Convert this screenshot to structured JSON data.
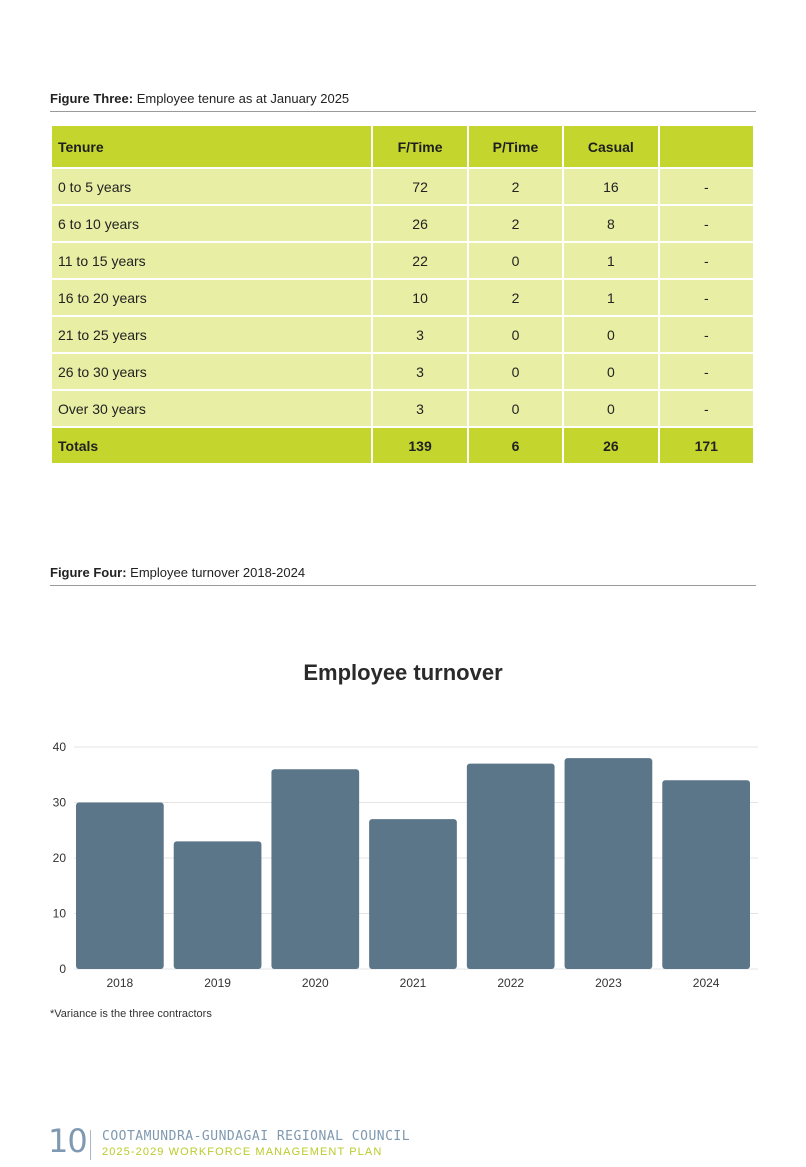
{
  "figure3": {
    "caption_bold": "Figure Three:",
    "caption_rest": " Employee tenure as at January 2025",
    "headers": [
      "Tenure",
      "F/Time",
      "P/Time",
      "Casual",
      ""
    ],
    "rows": [
      [
        "0 to 5 years",
        "72",
        "2",
        "16",
        "-"
      ],
      [
        "6 to 10 years",
        "26",
        "2",
        "8",
        "-"
      ],
      [
        "11 to 15 years",
        "22",
        "0",
        "1",
        "-"
      ],
      [
        "16 to 20 years",
        "10",
        "2",
        "1",
        "-"
      ],
      [
        "21 to 25 years",
        "3",
        "0",
        "0",
        "-"
      ],
      [
        "26 to 30 years",
        "3",
        "0",
        "0",
        "-"
      ],
      [
        "Over 30 years",
        "3",
        "0",
        "0",
        "-"
      ]
    ],
    "totals": [
      "Totals",
      "139",
      "6",
      "26",
      "171"
    ]
  },
  "figure4": {
    "caption_bold": "Figure Four:",
    "caption_rest": " Employee turnover 2018-2024",
    "footnote": "*Variance is the three contractors"
  },
  "chart_data": {
    "type": "bar",
    "title": "Employee turnover",
    "categories": [
      "2018",
      "2019",
      "2020",
      "2021",
      "2022",
      "2023",
      "2024"
    ],
    "values": [
      30,
      23,
      36,
      27,
      37,
      38,
      34
    ],
    "ylim": [
      0,
      40
    ],
    "yticks": [
      0,
      10,
      20,
      30,
      40
    ],
    "xlabel": "",
    "ylabel": "",
    "grid": true,
    "bar_color": "#5b7589"
  },
  "footer": {
    "page_number": "10",
    "organisation": "COOTAMUNDRA-GUNDAGAI REGIONAL COUNCIL",
    "plan": "2025-2029 WORKFORCE MANAGEMENT PLAN"
  },
  "colors": {
    "header_green": "#c4d62e",
    "row_green": "#e8efa4",
    "bar": "#5b7589",
    "footer_blue": "#7f99b0"
  }
}
